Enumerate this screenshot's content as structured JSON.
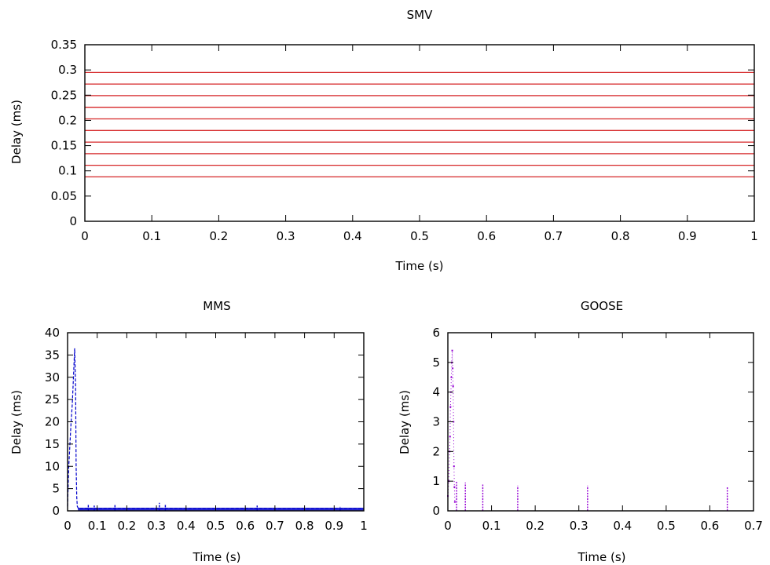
{
  "chart_data": [
    {
      "type": "line",
      "title": "SMV",
      "xlabel": "Time (s)",
      "ylabel": "Delay (ms)",
      "xlim": [
        0,
        1
      ],
      "ylim": [
        0,
        0.35
      ],
      "xticks": [
        "0",
        "0.1",
        "0.2",
        "0.3",
        "0.4",
        "0.5",
        "0.6",
        "0.7",
        "0.8",
        "0.9",
        "1"
      ],
      "yticks": [
        "0",
        "0.05",
        "0.1",
        "0.15",
        "0.2",
        "0.25",
        "0.3",
        "0.35"
      ],
      "grid": false,
      "color": "#d62728",
      "series": [
        {
          "x": [
            0,
            1
          ],
          "y": [
            0.088,
            0.088
          ]
        },
        {
          "x": [
            0,
            1
          ],
          "y": [
            0.111,
            0.111
          ]
        },
        {
          "x": [
            0,
            1
          ],
          "y": [
            0.134,
            0.134
          ]
        },
        {
          "x": [
            0,
            1
          ],
          "y": [
            0.157,
            0.157
          ]
        },
        {
          "x": [
            0,
            1
          ],
          "y": [
            0.18,
            0.18
          ]
        },
        {
          "x": [
            0,
            1
          ],
          "y": [
            0.203,
            0.203
          ]
        },
        {
          "x": [
            0,
            1
          ],
          "y": [
            0.226,
            0.226
          ]
        },
        {
          "x": [
            0,
            1
          ],
          "y": [
            0.249,
            0.249
          ]
        },
        {
          "x": [
            0,
            1
          ],
          "y": [
            0.272,
            0.272
          ]
        },
        {
          "x": [
            0,
            1
          ],
          "y": [
            0.295,
            0.295
          ]
        }
      ]
    },
    {
      "type": "line",
      "title": "MMS",
      "xlabel": "Time (s)",
      "ylabel": "Delay (ms)",
      "xlim": [
        0,
        1
      ],
      "ylim": [
        0,
        40
      ],
      "xticks": [
        "0",
        "0.1",
        "0.2",
        "0.3",
        "0.4",
        "0.5",
        "0.6",
        "0.7",
        "0.8",
        "0.9",
        "1"
      ],
      "yticks": [
        "0",
        "5",
        "10",
        "15",
        "20",
        "25",
        "30",
        "35",
        "40"
      ],
      "grid": false,
      "color": "#0000cc",
      "series": [
        {
          "x": [
            0.0,
            0.004,
            0.008,
            0.012,
            0.016,
            0.02,
            0.024,
            0.027,
            0.029,
            0.031,
            0.033,
            0.036,
            0.04,
            0.06,
            0.1,
            0.15,
            0.2,
            0.3,
            0.4,
            0.5,
            0.6,
            0.7,
            0.8,
            0.9,
            1.0
          ],
          "y": [
            1.0,
            10.0,
            15.0,
            20.0,
            24.0,
            30.0,
            36.5,
            28.0,
            10.0,
            3.0,
            1.0,
            0.6,
            0.5,
            0.6,
            0.5,
            0.6,
            0.5,
            0.6,
            0.5,
            0.5,
            0.6,
            0.5,
            0.5,
            0.5,
            0.5
          ]
        }
      ],
      "spikes": [
        {
          "x": 0.07,
          "y": 1.5
        },
        {
          "x": 0.09,
          "y": 1.2
        },
        {
          "x": 0.16,
          "y": 1.3
        },
        {
          "x": 0.31,
          "y": 1.8
        },
        {
          "x": 0.33,
          "y": 1.4
        },
        {
          "x": 0.64,
          "y": 1.2
        },
        {
          "x": 0.92,
          "y": 0.9
        }
      ]
    },
    {
      "type": "scatter",
      "title": "GOOSE",
      "xlabel": "Time (s)",
      "ylabel": "Delay (ms)",
      "xlim": [
        0,
        0.7
      ],
      "ylim": [
        0,
        6
      ],
      "xticks": [
        "0",
        "0.1",
        "0.2",
        "0.3",
        "0.4",
        "0.5",
        "0.6",
        "0.7"
      ],
      "yticks": [
        "0",
        "1",
        "2",
        "3",
        "4",
        "5",
        "6"
      ],
      "grid": false,
      "color": "#9400d3",
      "series": [
        {
          "x": [
            0.0,
            0.002,
            0.004,
            0.005,
            0.006,
            0.007,
            0.008,
            0.009,
            0.01,
            0.011,
            0.012,
            0.013,
            0.014,
            0.015,
            0.016
          ],
          "y": [
            0.5,
            1.0,
            2.0,
            2.5,
            3.5,
            4.0,
            4.5,
            5.0,
            5.4,
            4.8,
            4.2,
            3.0,
            1.5,
            0.8,
            0.3
          ]
        }
      ],
      "spikes": [
        {
          "x": 0.02,
          "y": 1.0
        },
        {
          "x": 0.04,
          "y": 0.95
        },
        {
          "x": 0.08,
          "y": 0.9
        },
        {
          "x": 0.16,
          "y": 0.85
        },
        {
          "x": 0.32,
          "y": 0.85
        },
        {
          "x": 0.64,
          "y": 0.8
        }
      ]
    }
  ]
}
